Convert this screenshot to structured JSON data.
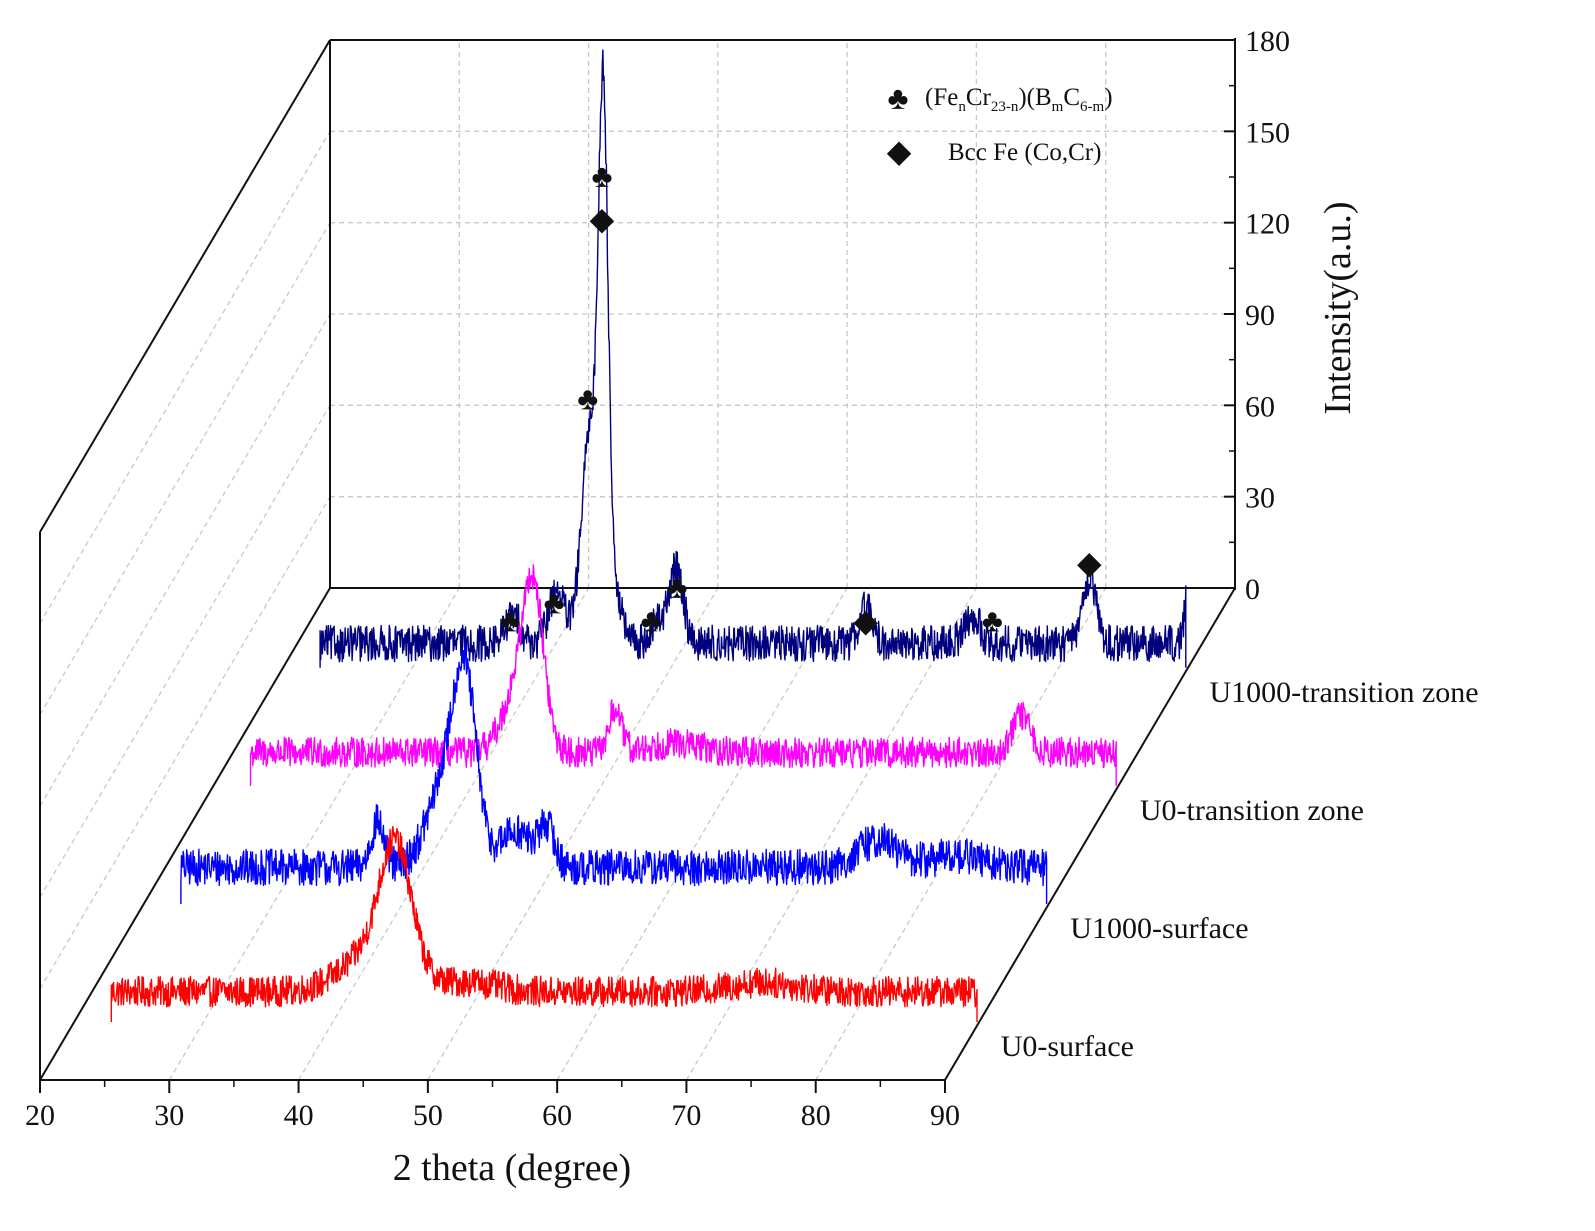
{
  "chart_data": {
    "type": "line",
    "subtype": "3d-waterfall",
    "xlabel": "2 theta (degree)",
    "ylabel": "Intensity(a.u.)",
    "xlim": [
      20,
      90
    ],
    "ylim": [
      0,
      180
    ],
    "x_ticks": [
      "20",
      "30",
      "40",
      "50",
      "60",
      "70",
      "80",
      "90"
    ],
    "y_ticks": [
      "0",
      "30",
      "60",
      "90",
      "120",
      "150",
      "180"
    ],
    "series": [
      {
        "name": "U0-surface",
        "color": "#ff0000",
        "baseline": 8,
        "noise": 5,
        "peaks": [
          {
            "x": 44.6,
            "height": 38,
            "width": 1.2
          },
          {
            "x": 43.2,
            "height": 14,
            "width": 2.5
          },
          {
            "x": 50.5,
            "height": 3,
            "width": 2
          },
          {
            "x": 73,
            "height": 3,
            "width": 2.5
          }
        ]
      },
      {
        "name": "U1000-surface",
        "color": "#0000ff",
        "baseline": 10,
        "noise": 6,
        "peaks": [
          {
            "x": 44.6,
            "height": 52,
            "width": 0.9
          },
          {
            "x": 43.1,
            "height": 28,
            "width": 1.4
          },
          {
            "x": 37.8,
            "height": 15,
            "width": 0.5
          },
          {
            "x": 48.5,
            "height": 12,
            "width": 1.2
          },
          {
            "x": 50.9,
            "height": 13,
            "width": 0.6
          },
          {
            "x": 76.5,
            "height": 9,
            "width": 1.5
          },
          {
            "x": 82.5,
            "height": 4,
            "width": 2
          }
        ]
      },
      {
        "name": "U0-transition zone",
        "color": "#ff00ff",
        "baseline": 9,
        "noise": 5,
        "peaks": [
          {
            "x": 44.5,
            "height": 46,
            "width": 0.8
          },
          {
            "x": 43.3,
            "height": 20,
            "width": 1.2
          },
          {
            "x": 50.8,
            "height": 14,
            "width": 0.5
          },
          {
            "x": 55.5,
            "height": 3,
            "width": 2
          },
          {
            "x": 82.2,
            "height": 12,
            "width": 0.7
          }
        ]
      },
      {
        "name": "U1000-transition zone",
        "color": "#00007f",
        "baseline": 6,
        "noise": 6,
        "peaks": [
          {
            "x": 44.5,
            "height": 135,
            "width": 0.35
          },
          {
            "x": 44.3,
            "height": 50,
            "width": 0.9
          },
          {
            "x": 43.3,
            "height": 40,
            "width": 0.6
          },
          {
            "x": 37.5,
            "height": 9,
            "width": 0.6
          },
          {
            "x": 40.9,
            "height": 18,
            "width": 0.6
          },
          {
            "x": 48.9,
            "height": 8,
            "width": 0.6
          },
          {
            "x": 50.2,
            "height": 25,
            "width": 0.5
          },
          {
            "x": 64.8,
            "height": 12,
            "width": 0.5
          },
          {
            "x": 73.0,
            "height": 9,
            "width": 0.6
          },
          {
            "x": 82.1,
            "height": 22,
            "width": 0.5
          },
          {
            "x": 89.8,
            "height": 18,
            "width": 0.3
          }
        ]
      }
    ],
    "annotations": [
      {
        "symbol": "♣",
        "x": 44.4,
        "y": 152
      },
      {
        "symbol": "◆",
        "x": 44.4,
        "y": 138
      },
      {
        "symbol": "♣",
        "x": 43.3,
        "y": 79
      },
      {
        "symbol": "♣",
        "x": 37.3,
        "y": 6
      },
      {
        "symbol": "♣",
        "x": 40.7,
        "y": 12
      },
      {
        "symbol": "♣",
        "x": 48.2,
        "y": 6
      },
      {
        "symbol": "♣",
        "x": 50.2,
        "y": 17
      },
      {
        "symbol": "◆",
        "x": 64.8,
        "y": 6
      },
      {
        "symbol": "♣",
        "x": 74.6,
        "y": 6
      },
      {
        "symbol": "◆",
        "x": 82.1,
        "y": 25
      }
    ],
    "legend": [
      {
        "symbol": "♣",
        "label_main": "(Fe",
        "sub_1": "n",
        "mid_1": "Cr",
        "sub_2": "23-n",
        "mid_2": ")(B",
        "sub_3": "m",
        "mid_3": "C",
        "sub_4": "6-m",
        "tail": ")"
      },
      {
        "symbol": "◆",
        "label": "Bcc Fe (Co,Cr)"
      }
    ],
    "legend_position": "top-right"
  }
}
